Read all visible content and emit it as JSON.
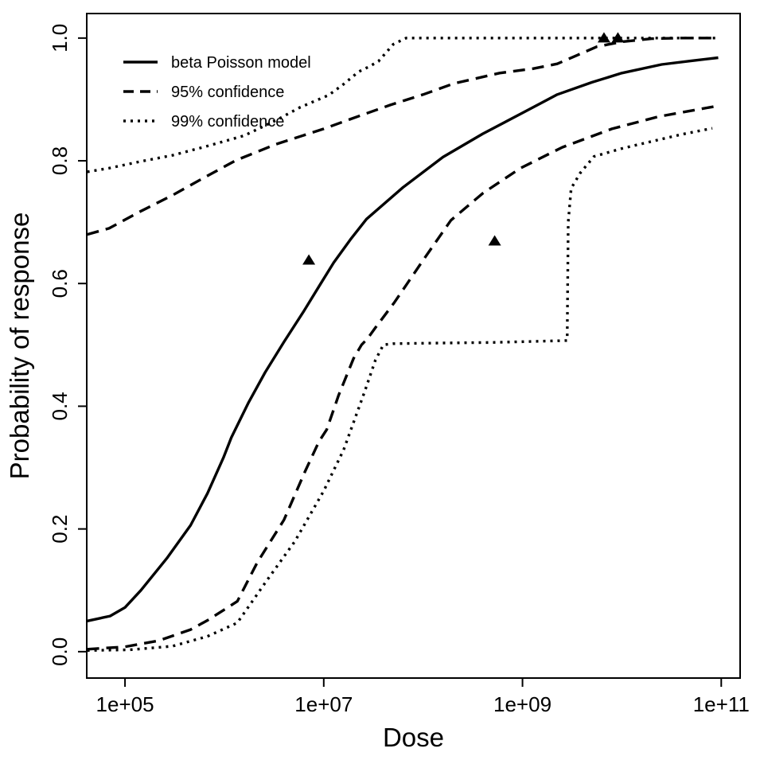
{
  "figure": {
    "background_color": "#ffffff",
    "foreground_color": "#000000"
  },
  "chart_data": {
    "type": "line",
    "title": "",
    "xlabel": "Dose",
    "ylabel": "Probability of response",
    "x_scale": "log10",
    "xlim_log10": [
      4.615,
      11.19
    ],
    "ylim": [
      -0.043,
      1.04
    ],
    "grid": "off",
    "x_ticks": [
      {
        "log10": 5,
        "label": "1e+05"
      },
      {
        "log10": 7,
        "label": "1e+07"
      },
      {
        "log10": 9,
        "label": "1e+09"
      },
      {
        "log10": 11,
        "label": "1e+11"
      }
    ],
    "y_ticks": [
      {
        "value": 0.0,
        "label": "0.0"
      },
      {
        "value": 0.2,
        "label": "0.2"
      },
      {
        "value": 0.4,
        "label": "0.4"
      },
      {
        "value": 0.6,
        "label": "0.6"
      },
      {
        "value": 0.8,
        "label": "0.8"
      },
      {
        "value": 1.0,
        "label": "1.0"
      }
    ],
    "legend": {
      "position": "top-left",
      "entries": [
        {
          "label": "beta Poisson model",
          "style": "solid"
        },
        {
          "label": "95% confidence",
          "style": "dashed"
        },
        {
          "label": "99% confidence",
          "style": "dotted"
        }
      ]
    },
    "series": [
      {
        "id": "beta-poisson-model",
        "name": "beta Poisson model",
        "style": "solid",
        "points": [
          [
            4.62,
            0.05
          ],
          [
            4.85,
            0.058
          ],
          [
            5.0,
            0.072
          ],
          [
            5.16,
            0.1
          ],
          [
            5.42,
            0.152
          ],
          [
            5.66,
            0.206
          ],
          [
            5.83,
            0.258
          ],
          [
            5.99,
            0.316
          ],
          [
            6.07,
            0.349
          ],
          [
            6.24,
            0.405
          ],
          [
            6.41,
            0.455
          ],
          [
            6.6,
            0.505
          ],
          [
            6.8,
            0.555
          ],
          [
            6.97,
            0.6
          ],
          [
            7.1,
            0.634
          ],
          [
            7.27,
            0.672
          ],
          [
            7.43,
            0.705
          ],
          [
            7.8,
            0.757
          ],
          [
            8.2,
            0.806
          ],
          [
            8.6,
            0.844
          ],
          [
            9.0,
            0.878
          ],
          [
            9.35,
            0.908
          ],
          [
            9.7,
            0.928
          ],
          [
            10.0,
            0.943
          ],
          [
            10.4,
            0.957
          ],
          [
            10.7,
            0.963
          ],
          [
            10.97,
            0.968
          ]
        ]
      },
      {
        "id": "95-confidence-upper",
        "name": "95% confidence upper",
        "style": "dashed",
        "points": [
          [
            4.62,
            0.68
          ],
          [
            4.84,
            0.69
          ],
          [
            5.16,
            0.718
          ],
          [
            5.48,
            0.744
          ],
          [
            5.8,
            0.773
          ],
          [
            6.12,
            0.801
          ],
          [
            6.52,
            0.827
          ],
          [
            7.0,
            0.852
          ],
          [
            7.27,
            0.868
          ],
          [
            7.67,
            0.891
          ],
          [
            8.0,
            0.908
          ],
          [
            8.31,
            0.926
          ],
          [
            8.77,
            0.943
          ],
          [
            9.1,
            0.95
          ],
          [
            9.35,
            0.958
          ],
          [
            9.55,
            0.972
          ],
          [
            9.75,
            0.986
          ],
          [
            10.0,
            0.994
          ],
          [
            10.3,
            0.999
          ],
          [
            10.6,
            1.0
          ],
          [
            10.97,
            1.0
          ]
        ]
      },
      {
        "id": "95-confidence-lower",
        "name": "95% confidence lower",
        "style": "dashed",
        "points": [
          [
            4.62,
            0.004
          ],
          [
            5.0,
            0.008
          ],
          [
            5.34,
            0.018
          ],
          [
            5.66,
            0.036
          ],
          [
            5.83,
            0.051
          ],
          [
            6.13,
            0.082
          ],
          [
            6.33,
            0.145
          ],
          [
            6.6,
            0.215
          ],
          [
            6.81,
            0.293
          ],
          [
            6.95,
            0.342
          ],
          [
            7.03,
            0.362
          ],
          [
            7.15,
            0.418
          ],
          [
            7.3,
            0.478
          ],
          [
            7.38,
            0.5
          ],
          [
            7.44,
            0.51
          ],
          [
            7.52,
            0.528
          ],
          [
            7.71,
            0.569
          ],
          [
            8.0,
            0.638
          ],
          [
            8.28,
            0.703
          ],
          [
            8.6,
            0.747
          ],
          [
            8.98,
            0.788
          ],
          [
            9.4,
            0.822
          ],
          [
            9.9,
            0.852
          ],
          [
            10.37,
            0.872
          ],
          [
            10.95,
            0.889
          ]
        ]
      },
      {
        "id": "99-confidence-upper",
        "name": "99% confidence upper",
        "style": "dotted",
        "points": [
          [
            4.62,
            0.782
          ],
          [
            4.84,
            0.788
          ],
          [
            5.16,
            0.799
          ],
          [
            5.48,
            0.809
          ],
          [
            5.83,
            0.824
          ],
          [
            6.2,
            0.841
          ],
          [
            6.52,
            0.866
          ],
          [
            6.76,
            0.887
          ],
          [
            7.05,
            0.907
          ],
          [
            7.2,
            0.925
          ],
          [
            7.35,
            0.945
          ],
          [
            7.45,
            0.953
          ],
          [
            7.55,
            0.962
          ],
          [
            7.7,
            0.99
          ],
          [
            7.83,
            1.0
          ],
          [
            10.97,
            1.0
          ]
        ]
      },
      {
        "id": "99-confidence-lower",
        "name": "99% confidence lower",
        "style": "dotted",
        "points": [
          [
            4.62,
            0.002
          ],
          [
            5.05,
            0.003
          ],
          [
            5.48,
            0.009
          ],
          [
            5.83,
            0.025
          ],
          [
            6.13,
            0.047
          ],
          [
            6.41,
            0.112
          ],
          [
            6.71,
            0.18
          ],
          [
            7.0,
            0.262
          ],
          [
            7.2,
            0.329
          ],
          [
            7.41,
            0.423
          ],
          [
            7.52,
            0.475
          ],
          [
            7.6,
            0.5
          ],
          [
            7.7,
            0.502
          ],
          [
            8.2,
            0.503
          ],
          [
            8.7,
            0.504
          ],
          [
            9.2,
            0.506
          ],
          [
            9.45,
            0.507
          ],
          [
            9.46,
            0.7
          ],
          [
            9.49,
            0.755
          ],
          [
            9.58,
            0.78
          ],
          [
            9.72,
            0.807
          ],
          [
            10.0,
            0.82
          ],
          [
            10.31,
            0.832
          ],
          [
            10.6,
            0.843
          ],
          [
            10.91,
            0.853
          ]
        ]
      }
    ],
    "observed_points": {
      "marker": "filled-triangle-up",
      "color": "#000000",
      "points": [
        [
          6.85,
          0.638
        ],
        [
          8.72,
          0.669
        ],
        [
          9.82,
          1.0
        ],
        [
          9.96,
          1.0
        ]
      ]
    }
  }
}
